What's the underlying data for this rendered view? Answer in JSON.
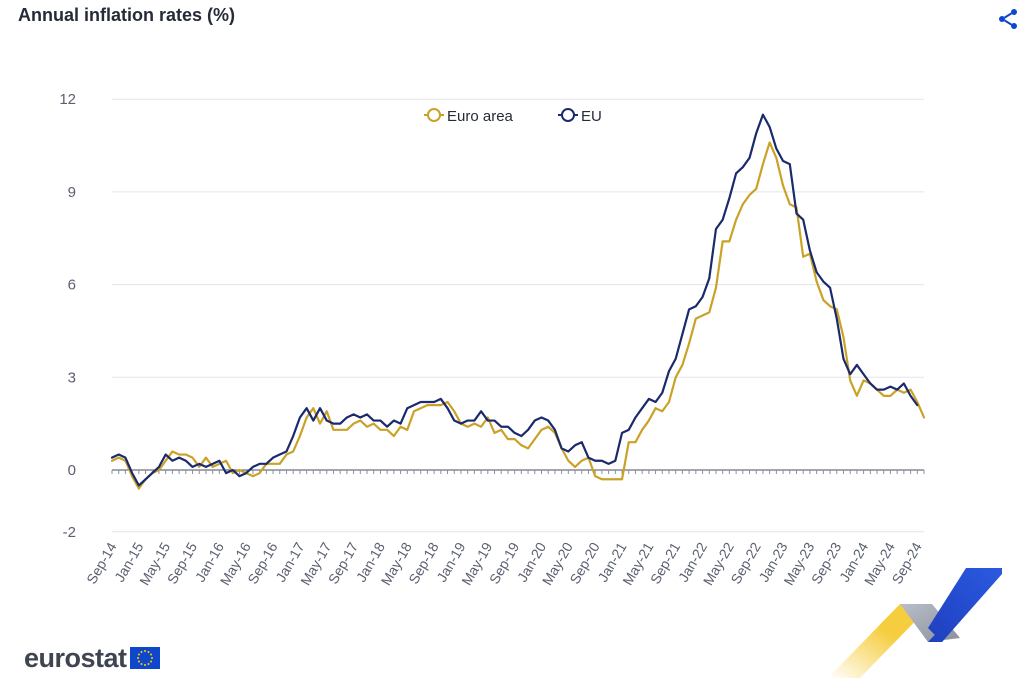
{
  "header": {
    "title": "Annual inflation rates (%)",
    "share_icon": "share-icon"
  },
  "branding": {
    "logo_text": "eurostat",
    "flag_icon": "eu-flag-icon",
    "flag_color": "#0e47cb",
    "star_color": "#ffcc00"
  },
  "chart_data": {
    "type": "line",
    "title": "Annual inflation rates (%)",
    "x_tick_labels": [
      "Sep-14",
      "Jan-15",
      "May-15",
      "Sep-15",
      "Jan-16",
      "May-16",
      "Sep-16",
      "Jan-17",
      "May-17",
      "Sep-17",
      "Jan-18",
      "May-18",
      "Sep-18",
      "Jan-19",
      "May-19",
      "Sep-19",
      "Jan-20",
      "May-20",
      "Sep-20",
      "Jan-21",
      "May-21",
      "Sep-21",
      "Jan-22",
      "May-22",
      "Sep-22",
      "Jan-23",
      "May-23",
      "Sep-23",
      "Jan-24",
      "May-24",
      "Sep-24"
    ],
    "y_ticks": [
      -2,
      0,
      3,
      6,
      9,
      12
    ],
    "ylim": [
      -2,
      12
    ],
    "grid": true,
    "legend_position": "top-center",
    "series": [
      {
        "name": "Euro area",
        "color": "#c9a227",
        "values": [
          0.3,
          0.4,
          0.3,
          -0.2,
          -0.6,
          -0.3,
          -0.1,
          0.0,
          0.3,
          0.6,
          0.5,
          0.5,
          0.4,
          0.1,
          0.4,
          0.1,
          0.2,
          0.3,
          -0.1,
          0.0,
          -0.1,
          -0.2,
          -0.1,
          0.2,
          0.2,
          0.2,
          0.5,
          0.6,
          1.1,
          1.7,
          2.0,
          1.5,
          1.9,
          1.3,
          1.3,
          1.3,
          1.5,
          1.6,
          1.4,
          1.5,
          1.3,
          1.3,
          1.1,
          1.4,
          1.3,
          1.9,
          2.0,
          2.1,
          2.1,
          2.1,
          2.2,
          1.9,
          1.5,
          1.4,
          1.5,
          1.4,
          1.7,
          1.2,
          1.3,
          1.0,
          1.0,
          0.8,
          0.7,
          1.0,
          1.3,
          1.4,
          1.2,
          0.7,
          0.3,
          0.1,
          0.3,
          0.4,
          -0.2,
          -0.3,
          -0.3,
          -0.3,
          -0.3,
          0.9,
          0.9,
          1.3,
          1.6,
          2.0,
          1.9,
          2.2,
          3.0,
          3.4,
          4.1,
          4.9,
          5.0,
          5.1,
          5.9,
          7.4,
          7.4,
          8.1,
          8.6,
          8.9,
          9.1,
          9.9,
          10.6,
          10.1,
          9.2,
          8.6,
          8.5,
          6.9,
          7.0,
          6.1,
          5.5,
          5.3,
          5.2,
          4.3,
          2.9,
          2.4,
          2.9,
          2.8,
          2.6,
          2.4,
          2.4,
          2.6,
          2.5,
          2.6,
          2.2,
          1.7
        ]
      },
      {
        "name": "EU",
        "color": "#1b2a6b",
        "values": [
          0.4,
          0.5,
          0.4,
          -0.1,
          -0.5,
          -0.3,
          -0.1,
          0.1,
          0.5,
          0.3,
          0.4,
          0.3,
          0.1,
          0.2,
          0.1,
          0.2,
          0.3,
          -0.1,
          0.0,
          -0.2,
          -0.1,
          0.1,
          0.2,
          0.2,
          0.4,
          0.5,
          0.6,
          1.1,
          1.7,
          2.0,
          1.6,
          2.0,
          1.6,
          1.5,
          1.5,
          1.7,
          1.8,
          1.7,
          1.8,
          1.6,
          1.6,
          1.4,
          1.6,
          1.5,
          2.0,
          2.1,
          2.2,
          2.2,
          2.2,
          2.3,
          2.0,
          1.6,
          1.5,
          1.6,
          1.6,
          1.9,
          1.6,
          1.6,
          1.4,
          1.4,
          1.2,
          1.1,
          1.3,
          1.6,
          1.7,
          1.6,
          1.3,
          0.7,
          0.6,
          0.8,
          0.9,
          0.4,
          0.3,
          0.3,
          0.2,
          0.3,
          1.2,
          1.3,
          1.7,
          2.0,
          2.3,
          2.2,
          2.5,
          3.2,
          3.6,
          4.4,
          5.2,
          5.3,
          5.6,
          6.2,
          7.8,
          8.1,
          8.8,
          9.6,
          9.8,
          10.1,
          10.9,
          11.5,
          11.1,
          10.4,
          10.0,
          9.9,
          8.3,
          8.1,
          7.1,
          6.4,
          6.1,
          5.9,
          4.9,
          3.6,
          3.1,
          3.4,
          3.1,
          2.8,
          2.6,
          2.6,
          2.7,
          2.6,
          2.8,
          2.4,
          2.1
        ]
      }
    ]
  }
}
